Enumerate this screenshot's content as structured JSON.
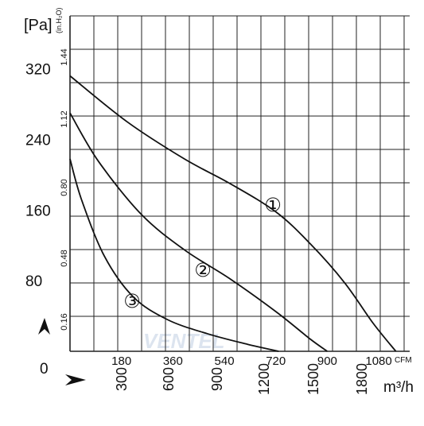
{
  "chart_data": {
    "type": "line",
    "y_unit_left": "[Pa]",
    "y_unit_inner": "(in.H₂O)",
    "x_unit_top": "CFM",
    "x_unit_bottom": "m³/h",
    "origin_label": "0",
    "watermark": "VENTEL",
    "y_axis": {
      "range": [
        0,
        380
      ],
      "ticks": [
        "80",
        "160",
        "240",
        "320"
      ],
      "tick_values": [
        80,
        160,
        240,
        320
      ]
    },
    "y_axis_inner": {
      "ticks": [
        "0.16",
        "0.48",
        "0.80",
        "1.12",
        "1.44"
      ],
      "tick_values": [
        0.16,
        0.48,
        0.8,
        1.12,
        1.44
      ]
    },
    "x_axis_top": {
      "range": [
        0,
        1180
      ],
      "ticks": [
        "180",
        "360",
        "540",
        "720",
        "900",
        "1080"
      ],
      "tick_values": [
        180,
        360,
        540,
        720,
        900,
        1080
      ]
    },
    "x_axis_bottom": {
      "ticks": [
        "300",
        "600",
        "900",
        "1200",
        "1500",
        "1800"
      ],
      "tick_values": [
        300,
        600,
        900,
        1200,
        1500,
        1800
      ]
    },
    "grid": true,
    "series": [
      {
        "name": "①",
        "x": [
          0,
          200,
          400,
          560,
          720,
          840,
          960,
          1060,
          1140
        ],
        "y": [
          312,
          260,
          218,
          190,
          158,
          122,
          78,
          32,
          0
        ]
      },
      {
        "name": "②",
        "x": [
          0,
          100,
          250,
          400,
          560,
          720,
          840,
          900
        ],
        "y": [
          270,
          215,
          155,
          115,
          82,
          45,
          14,
          0
        ]
      },
      {
        "name": "③",
        "x": [
          0,
          40,
          120,
          220,
          340,
          480,
          620,
          730
        ],
        "y": [
          218,
          172,
          108,
          62,
          36,
          20,
          8,
          0
        ]
      }
    ]
  }
}
